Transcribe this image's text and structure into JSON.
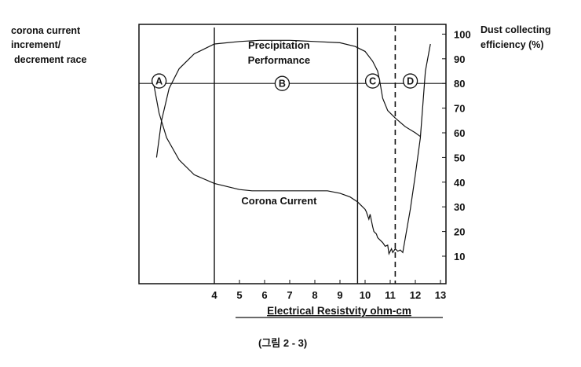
{
  "chart_data": {
    "type": "line",
    "left_label": [
      "corona current",
      "increment/",
      "decrement race"
    ],
    "right_label": [
      "Dust collecting",
      "efficiency (%)"
    ],
    "xlabel": "Electrical Resistvity ohm-cm",
    "caption": "(그림 2 - 3)",
    "x_ticks": [
      4,
      5,
      6,
      7,
      8,
      9,
      10,
      11,
      12,
      13
    ],
    "y_ticks": [
      10,
      20,
      30,
      40,
      50,
      60,
      70,
      80,
      90,
      100
    ],
    "xlim": [
      1,
      13.25
    ],
    "ylim": [
      -1,
      101
    ],
    "reference_lines": {
      "horizontal": 80,
      "vertical_solid": [
        4,
        9.7
      ],
      "vertical_dashed": 11.2
    },
    "region_labels": [
      {
        "label": "A",
        "x": 1.8,
        "y": 81
      },
      {
        "label": "B",
        "x": 6.7,
        "y": 80
      },
      {
        "label": "C",
        "x": 10.3,
        "y": 81
      },
      {
        "label": "D",
        "x": 11.8,
        "y": 81
      }
    ],
    "annotations": [
      {
        "text": "Precipitation",
        "x": 6.7,
        "y": 94
      },
      {
        "text": "Performance",
        "x": 6.7,
        "y": 88
      },
      {
        "text": "Corona Current",
        "x": 6.7,
        "y": 31
      }
    ],
    "series": [
      {
        "name": "Precipitation Performance",
        "x": [
          1.7,
          1.9,
          2.2,
          2.6,
          3.2,
          4,
          5,
          5.8,
          7,
          8,
          9,
          9.6,
          10,
          10.3,
          10.5,
          10.6,
          10.7,
          10.9,
          11.2,
          11.6,
          12,
          12.2
        ],
        "y": [
          50,
          65,
          78,
          86,
          92,
          96,
          97,
          97.5,
          97.5,
          97,
          96.5,
          95,
          93,
          89,
          85,
          80,
          74,
          69,
          66,
          62.5,
          60,
          58.5
        ]
      },
      {
        "name": "Corona Current",
        "x": [
          1.6,
          1.8,
          2.1,
          2.6,
          3.2,
          4,
          5,
          5.5,
          8.5,
          9,
          9.4,
          9.7,
          9.9,
          10,
          10.05,
          10.15,
          10.2,
          10.3,
          10.35,
          10.45,
          10.5,
          10.6,
          10.7,
          10.8,
          10.9,
          10.95,
          11.05,
          11.1,
          11.2,
          11.3,
          11.4,
          11.5,
          11.8,
          12.0,
          12.2,
          12.4,
          12.6
        ],
        "y": [
          79,
          68,
          58,
          49,
          43,
          39.5,
          37,
          36.5,
          36.5,
          35.5,
          34,
          32,
          30,
          29,
          28,
          25,
          27,
          22,
          20,
          19,
          17.5,
          16.5,
          15.5,
          14,
          14.5,
          11,
          13,
          11.5,
          13,
          12,
          12.5,
          11.5,
          29,
          43,
          58,
          85,
          96
        ]
      }
    ]
  }
}
